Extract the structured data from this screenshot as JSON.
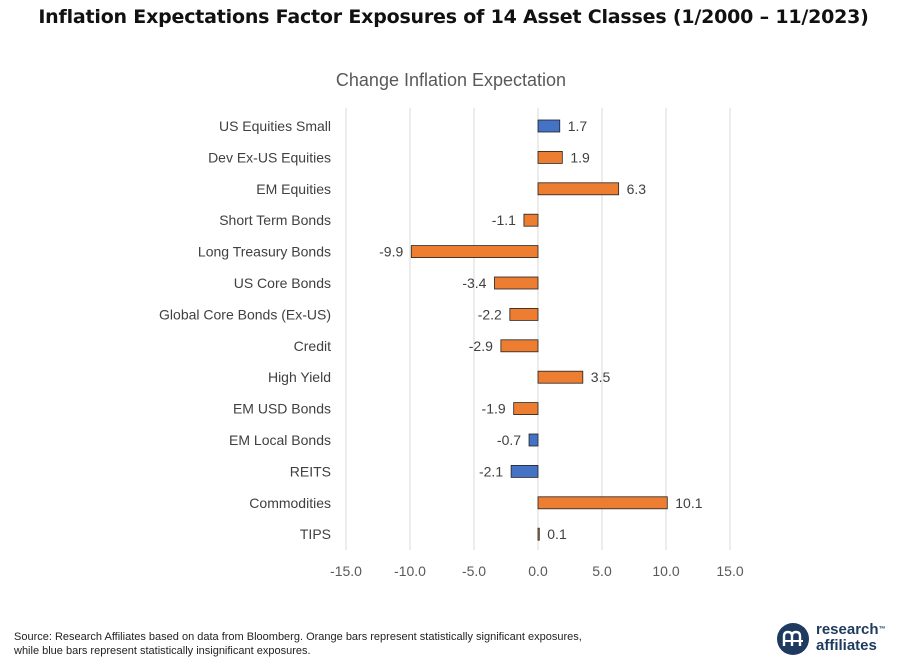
{
  "title": "Inflation Expectations Factor Exposures of 14 Asset Classes (1/2000 – 11/2023)",
  "colors": {
    "significant": "#ED7D31",
    "insignificant": "#4472C4",
    "grid": "#D9D9D9",
    "text": "#404040"
  },
  "chart_data": {
    "type": "bar",
    "orientation": "horizontal",
    "title": "Change Inflation Expectation",
    "categories": [
      "US Equities Small",
      "Dev Ex-US Equities",
      "EM Equities",
      "Short Term Bonds",
      "Long Treasury Bonds",
      "US Core Bonds",
      "Global Core Bonds (Ex-US)",
      "Credit",
      "High Yield",
      "EM USD Bonds",
      "EM Local Bonds",
      "REITS",
      "Commodities",
      "TIPS"
    ],
    "values": [
      1.7,
      1.9,
      6.3,
      -1.1,
      -9.9,
      -3.4,
      -2.2,
      -2.9,
      3.5,
      -1.9,
      -0.7,
      -2.1,
      10.1,
      0.1
    ],
    "data_labels": [
      "1.7",
      "1.9",
      "6.3",
      "-1.1",
      "-9.9",
      "-3.4",
      "-2.2",
      "-2.9",
      "3.5",
      "-1.9",
      "-0.7",
      "-2.1",
      "10.1",
      "0.1"
    ],
    "significant": [
      false,
      true,
      true,
      true,
      true,
      true,
      true,
      true,
      true,
      true,
      false,
      false,
      true,
      true
    ],
    "xlim": [
      -15,
      15
    ],
    "xticks": [
      -15,
      -10,
      -5,
      0,
      5,
      10,
      15
    ],
    "xtick_labels": [
      "-15.0",
      "-10.0",
      "-5.0",
      "0.0",
      "5.0",
      "10.0",
      "15.0"
    ],
    "grid": true,
    "legend": "none"
  },
  "footer": {
    "source_line1": "Source: Research Affiliates based on data from Bloomberg. Orange bars represent statistically significant exposures,",
    "source_line2": "while blue bars represent statistically insignificant exposures."
  },
  "logo": {
    "line1": "research",
    "line2": "affiliates",
    "tm": "™"
  }
}
